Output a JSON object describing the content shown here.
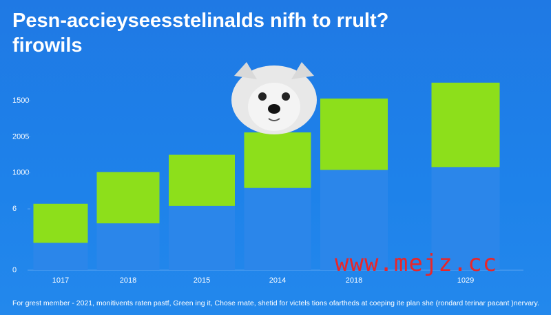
{
  "chart_data": {
    "type": "floating-bar",
    "title": "Pesn-accieyseesstelinalds nifh to rrult? firowils",
    "categories": [
      "1017",
      "2018",
      "2015",
      "2014",
      "2018",
      "1029"
    ],
    "low": [
      380,
      650,
      890,
      1140,
      1390,
      1430
    ],
    "high": [
      920,
      1360,
      1600,
      1910,
      2380,
      2600
    ],
    "color": "#8ddf1b",
    "ylim": [
      0,
      2800
    ],
    "yticks": [
      0,
      {
        "value": 850,
        "label": "6"
      },
      {
        "value": 1350,
        "label": "1000"
      },
      {
        "value": 1850,
        "label": "2005"
      },
      {
        "value": 2350,
        "label": "1500"
      }
    ],
    "watermark": "www.mejz.cc",
    "caption": "For grest member - 2021, monitivents raten pastf, Green ing it, Chose rnate, shetid for victels tions ofartheds at coeping ite plan she (rondard terinar pacant )nervary."
  }
}
